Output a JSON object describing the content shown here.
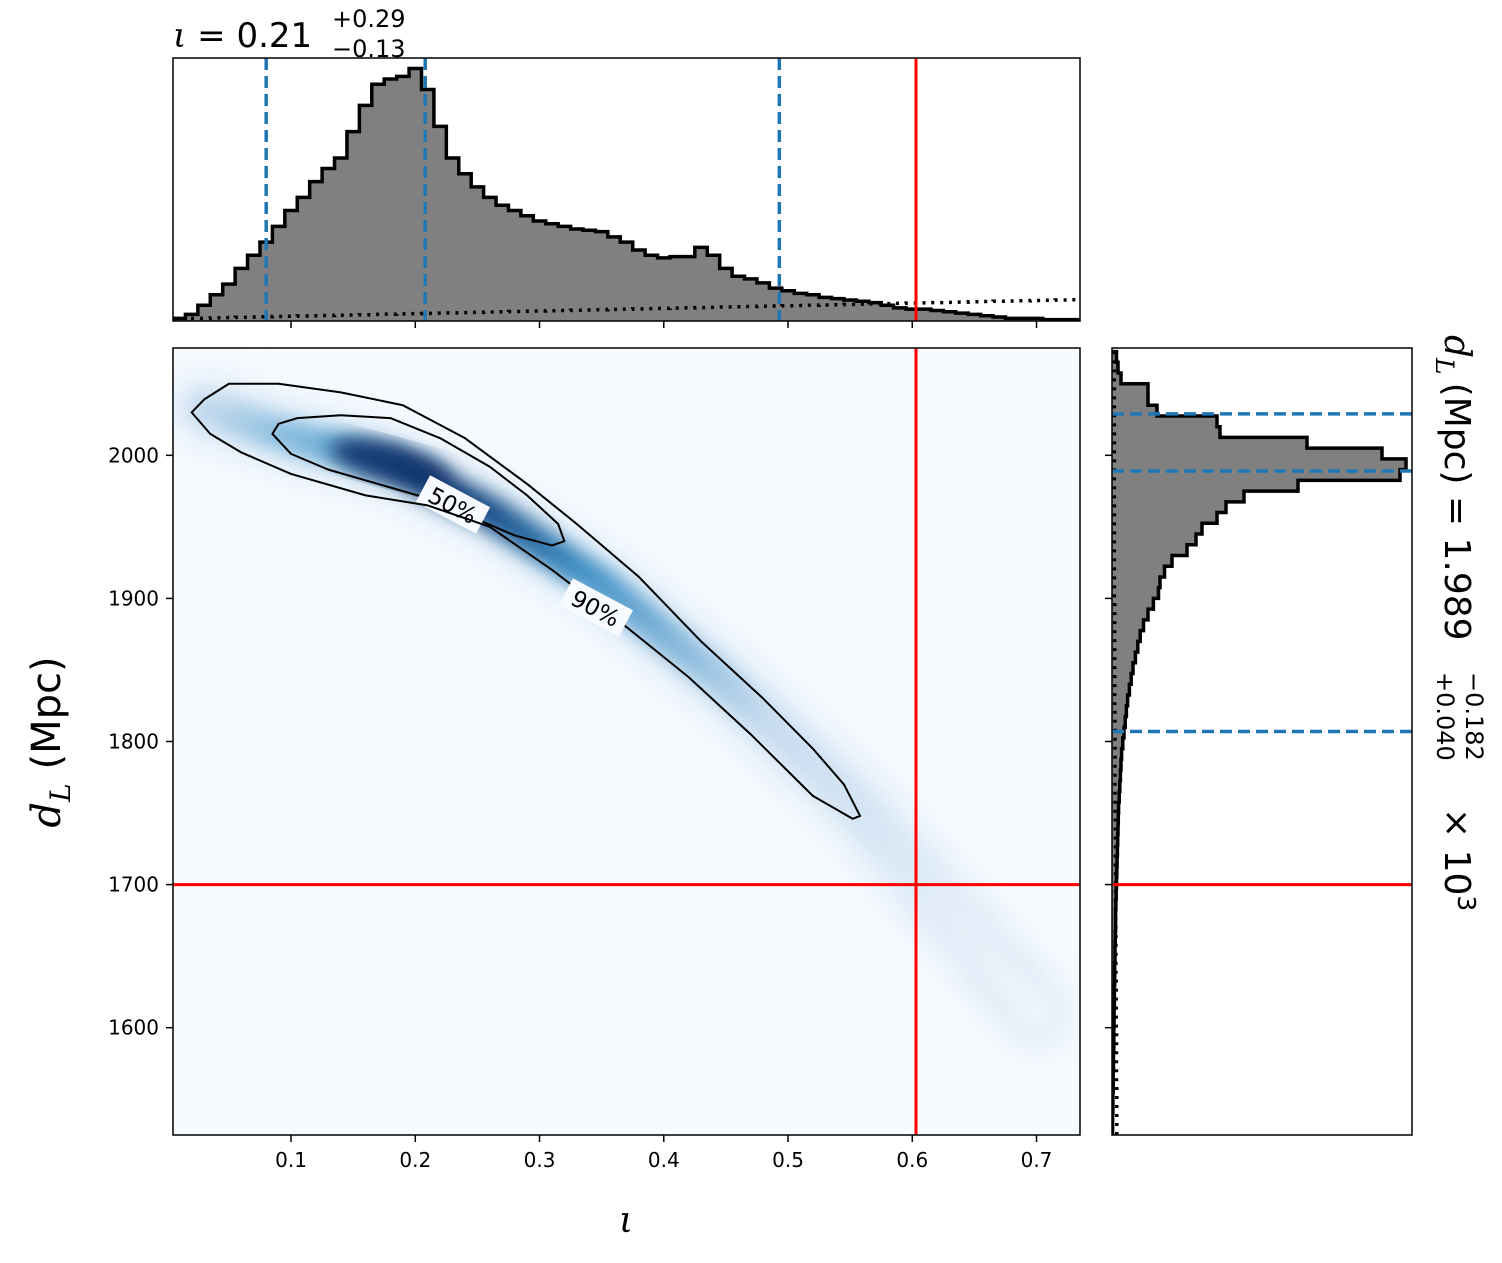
{
  "chart_data": [
    {
      "id": "joint",
      "type": "heatmap",
      "x_symbol": "ι",
      "y_symbol_main": "d",
      "y_symbol_sub": "L",
      "y_unit": "(Mpc)",
      "xlim": [
        0.005,
        0.735
      ],
      "ylim": [
        1525,
        2075
      ],
      "xticks": [
        0.1,
        0.2,
        0.3,
        0.4,
        0.5,
        0.6,
        0.7
      ],
      "xtick_labels": [
        "0.1",
        "0.2",
        "0.3",
        "0.4",
        "0.5",
        "0.6",
        "0.7"
      ],
      "yticks": [
        1600,
        1700,
        1800,
        1900,
        2000
      ],
      "ytick_labels": [
        "1600",
        "1700",
        "1800",
        "1900",
        "2000"
      ],
      "colormap": "Blues",
      "density_ridge": [
        {
          "x": 0.03,
          "y": 2033
        },
        {
          "x": 0.1,
          "y": 2013
        },
        {
          "x": 0.18,
          "y": 1995
        },
        {
          "x": 0.26,
          "y": 1960
        },
        {
          "x": 0.35,
          "y": 1910
        },
        {
          "x": 0.45,
          "y": 1840
        },
        {
          "x": 0.55,
          "y": 1760
        },
        {
          "x": 0.63,
          "y": 1680
        },
        {
          "x": 0.7,
          "y": 1610
        }
      ],
      "peak": {
        "x": 0.18,
        "y": 1995
      },
      "contours": [
        {
          "label": "50%",
          "label_at": {
            "x": 0.23,
            "y": 1965
          },
          "points": [
            [
              0.085,
              2015
            ],
            [
              0.09,
              2022
            ],
            [
              0.105,
              2026
            ],
            [
              0.14,
              2028
            ],
            [
              0.18,
              2026
            ],
            [
              0.22,
              2012
            ],
            [
              0.26,
              1992
            ],
            [
              0.29,
              1972
            ],
            [
              0.315,
              1952
            ],
            [
              0.32,
              1940
            ],
            [
              0.31,
              1937
            ],
            [
              0.28,
              1944
            ],
            [
              0.245,
              1957
            ],
            [
              0.21,
              1970
            ],
            [
              0.17,
              1980
            ],
            [
              0.13,
              1990
            ],
            [
              0.1,
              2001
            ]
          ]
        },
        {
          "label": "90%",
          "label_at": {
            "x": 0.345,
            "y": 1893
          },
          "points": [
            [
              0.02,
              2030
            ],
            [
              0.03,
              2039
            ],
            [
              0.05,
              2050
            ],
            [
              0.09,
              2050
            ],
            [
              0.14,
              2044
            ],
            [
              0.19,
              2035
            ],
            [
              0.24,
              2012
            ],
            [
              0.29,
              1980
            ],
            [
              0.33,
              1952
            ],
            [
              0.38,
              1915
            ],
            [
              0.43,
              1870
            ],
            [
              0.48,
              1830
            ],
            [
              0.52,
              1795
            ],
            [
              0.545,
              1770
            ],
            [
              0.558,
              1748
            ],
            [
              0.552,
              1746
            ],
            [
              0.52,
              1762
            ],
            [
              0.47,
              1805
            ],
            [
              0.42,
              1845
            ],
            [
              0.37,
              1880
            ],
            [
              0.31,
              1920
            ],
            [
              0.26,
              1950
            ],
            [
              0.21,
              1965
            ],
            [
              0.16,
              1972
            ],
            [
              0.1,
              1987
            ],
            [
              0.06,
              2002
            ],
            [
              0.035,
              2015
            ]
          ]
        }
      ],
      "truth": {
        "x": 0.603,
        "y": 1700
      },
      "truth_color": "#ff0000",
      "contour_color": "#000000"
    },
    {
      "id": "marginal-iota",
      "type": "bar",
      "title_symbol": "ι",
      "title_value": "0.21",
      "title_plus": "+0.29",
      "title_minus": "−0.13",
      "xlim": [
        0.005,
        0.735
      ],
      "bin_width": 0.01,
      "bin_starts": [
        0.005,
        0.015,
        0.025,
        0.035,
        0.045,
        0.055,
        0.065,
        0.075,
        0.085,
        0.095,
        0.105,
        0.115,
        0.125,
        0.135,
        0.145,
        0.155,
        0.165,
        0.175,
        0.185,
        0.195,
        0.205,
        0.215,
        0.225,
        0.235,
        0.245,
        0.255,
        0.265,
        0.275,
        0.285,
        0.295,
        0.305,
        0.315,
        0.325,
        0.335,
        0.345,
        0.355,
        0.365,
        0.375,
        0.385,
        0.395,
        0.405,
        0.415,
        0.425,
        0.435,
        0.445,
        0.455,
        0.465,
        0.475,
        0.485,
        0.495,
        0.505,
        0.515,
        0.525,
        0.535,
        0.545,
        0.555,
        0.565,
        0.575,
        0.585,
        0.595,
        0.605,
        0.615,
        0.625,
        0.635,
        0.645,
        0.655,
        0.665,
        0.675,
        0.685,
        0.695,
        0.705,
        0.715,
        0.725
      ],
      "values": [
        0.01,
        0.025,
        0.06,
        0.1,
        0.14,
        0.2,
        0.25,
        0.3,
        0.36,
        0.42,
        0.47,
        0.53,
        0.58,
        0.62,
        0.72,
        0.82,
        0.9,
        0.92,
        0.93,
        0.96,
        0.88,
        0.74,
        0.62,
        0.56,
        0.51,
        0.47,
        0.44,
        0.42,
        0.4,
        0.38,
        0.37,
        0.36,
        0.35,
        0.345,
        0.34,
        0.32,
        0.3,
        0.27,
        0.25,
        0.24,
        0.245,
        0.245,
        0.28,
        0.25,
        0.2,
        0.17,
        0.16,
        0.145,
        0.125,
        0.115,
        0.105,
        0.1,
        0.09,
        0.085,
        0.08,
        0.075,
        0.07,
        0.06,
        0.05,
        0.045,
        0.045,
        0.04,
        0.035,
        0.03,
        0.025,
        0.02,
        0.015,
        0.01,
        0.01,
        0.01,
        0.005,
        0.005,
        0.005
      ],
      "prior_values": [
        0.01,
        0.01,
        0.01,
        0.012,
        0.013,
        0.014,
        0.015,
        0.016,
        0.017,
        0.018,
        0.019,
        0.02,
        0.021,
        0.022,
        0.023,
        0.024,
        0.025,
        0.026,
        0.027,
        0.028,
        0.029,
        0.03,
        0.031,
        0.032,
        0.033,
        0.034,
        0.035,
        0.036,
        0.037,
        0.038,
        0.039,
        0.04,
        0.041,
        0.042,
        0.043,
        0.044,
        0.045,
        0.046,
        0.047,
        0.048,
        0.049,
        0.05,
        0.051,
        0.052,
        0.053,
        0.054,
        0.055,
        0.056,
        0.057,
        0.058,
        0.059,
        0.06,
        0.061,
        0.062,
        0.063,
        0.064,
        0.065,
        0.066,
        0.067,
        0.068,
        0.069,
        0.07,
        0.071,
        0.072,
        0.073,
        0.074,
        0.075,
        0.076,
        0.077,
        0.078,
        0.079,
        0.08,
        0.081
      ],
      "ylim": [
        0,
        1.0
      ],
      "quantiles": [
        0.08,
        0.208,
        0.493
      ],
      "quantile_color": "#1f77b4",
      "truth": 0.603,
      "truth_color": "#ff0000",
      "fill_color": "#808080"
    },
    {
      "id": "marginal-dl",
      "type": "bar",
      "orientation": "horizontal",
      "label_symbol": "d",
      "label_sub": "L",
      "label_unit": "(Mpc) = 1.989",
      "label_plus": "+0.040",
      "label_minus": "−0.182",
      "label_suffix": "× 10",
      "label_exp": "3",
      "ylim": [
        1525,
        2075
      ],
      "bin_width": 7.5,
      "bin_starts": [
        1525,
        1532.5,
        1540,
        1547.5,
        1555,
        1562.5,
        1570,
        1577.5,
        1585,
        1592.5,
        1600,
        1607.5,
        1615,
        1622.5,
        1630,
        1637.5,
        1645,
        1652.5,
        1660,
        1667.5,
        1675,
        1682.5,
        1690,
        1697.5,
        1705,
        1712.5,
        1720,
        1727.5,
        1735,
        1742.5,
        1750,
        1757.5,
        1765,
        1772.5,
        1780,
        1787.5,
        1795,
        1802.5,
        1810,
        1817.5,
        1825,
        1832.5,
        1840,
        1847.5,
        1855,
        1862.5,
        1870,
        1877.5,
        1885,
        1892.5,
        1900,
        1907.5,
        1915,
        1922.5,
        1930,
        1937.5,
        1945,
        1952.5,
        1960,
        1967.5,
        1975,
        1982.5,
        1990,
        1997.5,
        2005,
        2012.5,
        2020,
        2027.5,
        2035,
        2042.5,
        2050,
        2057.5,
        2065
      ],
      "values": [
        0.002,
        0.002,
        0.003,
        0.003,
        0.004,
        0.004,
        0.005,
        0.005,
        0.006,
        0.006,
        0.007,
        0.007,
        0.008,
        0.008,
        0.009,
        0.009,
        0.01,
        0.01,
        0.011,
        0.012,
        0.012,
        0.013,
        0.014,
        0.015,
        0.016,
        0.017,
        0.018,
        0.019,
        0.02,
        0.021,
        0.022,
        0.024,
        0.026,
        0.028,
        0.03,
        0.032,
        0.036,
        0.04,
        0.044,
        0.048,
        0.052,
        0.058,
        0.064,
        0.07,
        0.078,
        0.086,
        0.094,
        0.105,
        0.12,
        0.138,
        0.155,
        0.16,
        0.175,
        0.2,
        0.25,
        0.28,
        0.3,
        0.35,
        0.38,
        0.44,
        0.62,
        0.96,
        0.98,
        0.9,
        0.65,
        0.36,
        0.35,
        0.15,
        0.12,
        0.12,
        0.03,
        0.02,
        0.015
      ],
      "prior_values": [
        0.016,
        0.016,
        0.016,
        0.016,
        0.016,
        0.015,
        0.015,
        0.015,
        0.015,
        0.015,
        0.014,
        0.014,
        0.014,
        0.014,
        0.014,
        0.013,
        0.013,
        0.013,
        0.013,
        0.013,
        0.012,
        0.012,
        0.012,
        0.012,
        0.012,
        0.011,
        0.011,
        0.011,
        0.011,
        0.011,
        0.01,
        0.01,
        0.01,
        0.01,
        0.01,
        0.01,
        0.01,
        0.01,
        0.01,
        0.01,
        0.009,
        0.009,
        0.009,
        0.009,
        0.009,
        0.009,
        0.009,
        0.009,
        0.009,
        0.009,
        0.008,
        0.008,
        0.008,
        0.008,
        0.008,
        0.008,
        0.008,
        0.008,
        0.008,
        0.008,
        0.008,
        0.008,
        0.008,
        0.008,
        0.008,
        0.008,
        0.008,
        0.008,
        0.008,
        0.008,
        0.008,
        0.008,
        0.008
      ],
      "xlim": [
        0,
        1.0
      ],
      "quantiles": [
        1807,
        1989,
        2029
      ],
      "quantile_color": "#1f77b4",
      "truth": 1700,
      "truth_color": "#ff0000",
      "fill_color": "#808080"
    }
  ]
}
